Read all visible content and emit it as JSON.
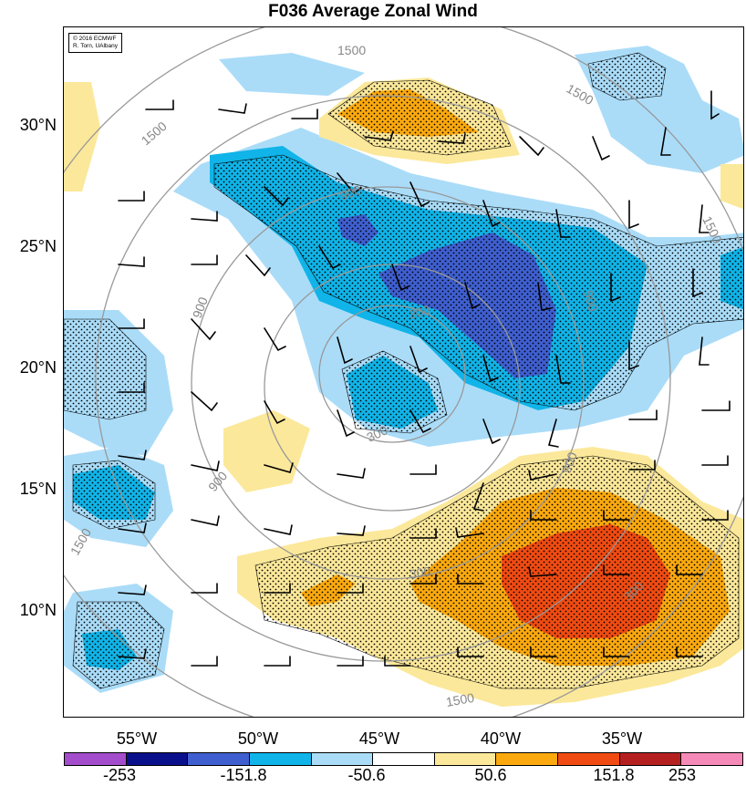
{
  "title": "F036 Average Zonal Wind",
  "credit": {
    "line1": "© 2016 ECMWF",
    "line2": "R. Torn, UAlbany"
  },
  "lat_labels": [
    "30°N",
    "25°N",
    "20°N",
    "15°N",
    "10°N"
  ],
  "lon_labels": [
    "55°W",
    "50°W",
    "45°W",
    "40°W",
    "35°W"
  ],
  "colorbar": {
    "colors": [
      "#a34dcc",
      "#0a0f8c",
      "#3f5fd0",
      "#10b4e8",
      "#aadcf8",
      "#ffffff",
      "#fbe89a",
      "#fba90f",
      "#f04b12",
      "#b51f20",
      "#f58ab8"
    ],
    "labels": [
      "-253",
      "-151.8",
      "-50.6",
      "50.6",
      "151.8",
      "253"
    ]
  },
  "contour_labels": [
    "1500",
    "1500",
    "1500",
    "1500",
    "1500",
    "1500",
    "900",
    "900",
    "900",
    "900",
    "900",
    "300",
    "300",
    "300",
    "300"
  ]
}
